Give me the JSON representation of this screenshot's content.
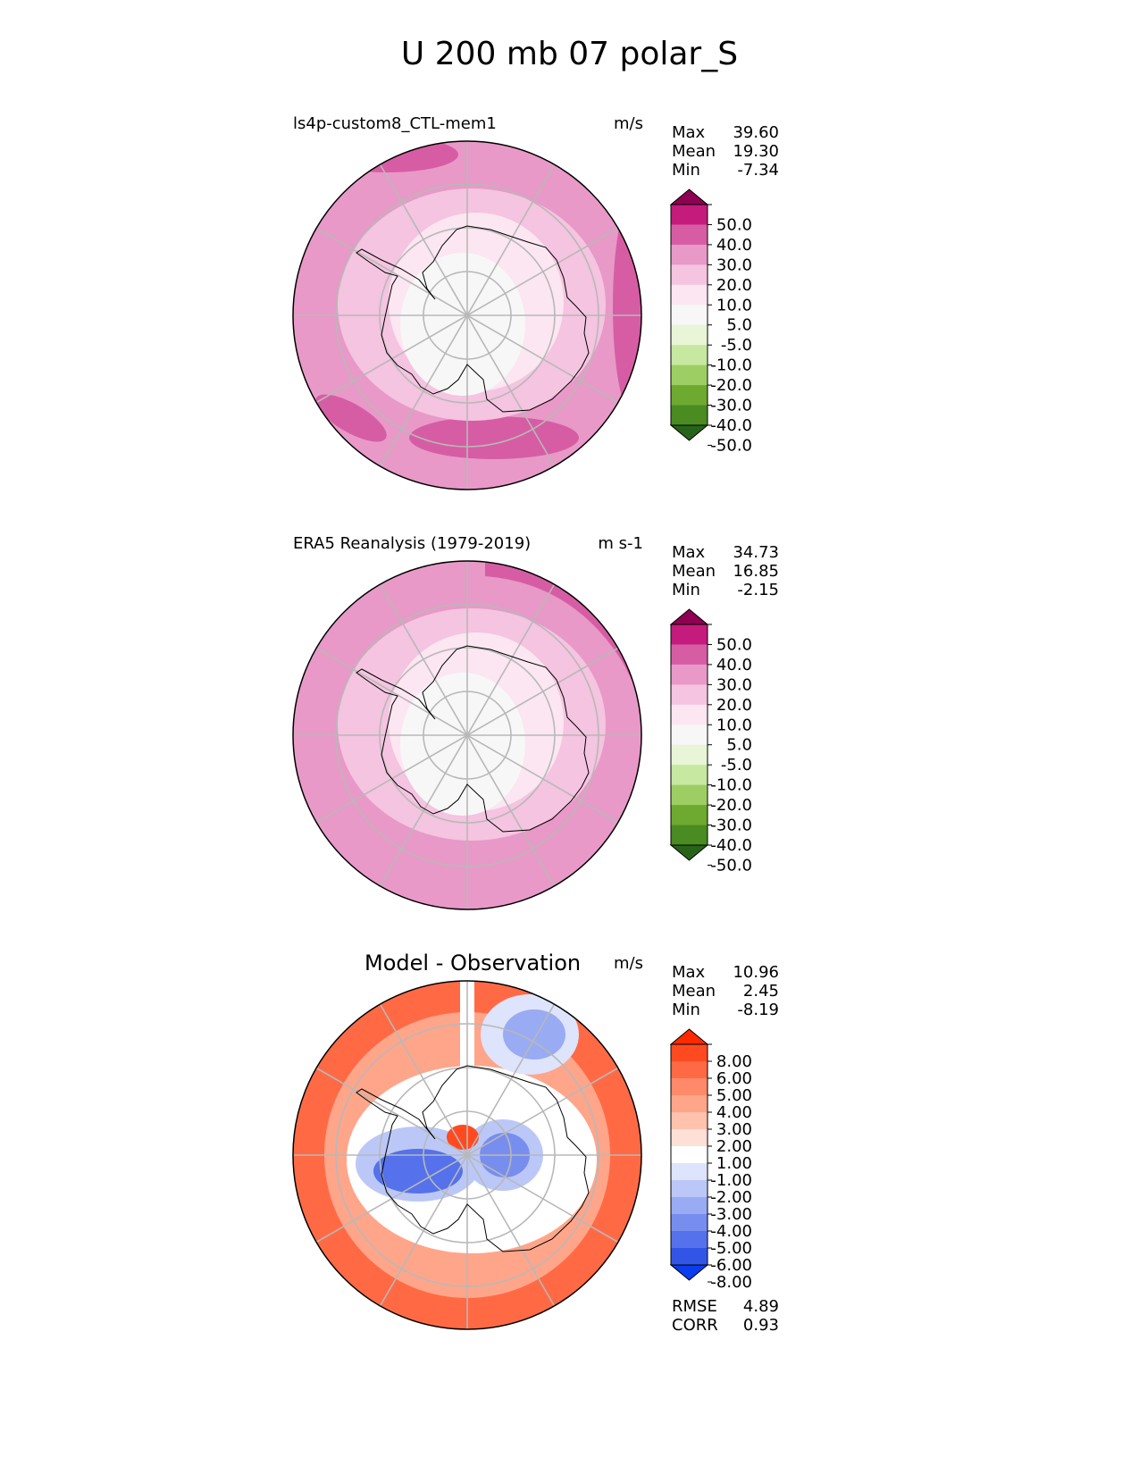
{
  "chart_data": {
    "type": "heatmap",
    "title": "U 200 mb 07 polar_S",
    "projection": "south-polar-stereographic",
    "panels": [
      {
        "id": "model",
        "title": "ls4p-custom8_CTL-mem1",
        "units": "m/s",
        "stats": [
          {
            "label": "Max",
            "value": "39.60"
          },
          {
            "label": "Mean",
            "value": "19.30"
          },
          {
            "label": "Min",
            "value": "-7.34"
          }
        ],
        "colorbar": {
          "levels": [
            "50.0",
            "40.0",
            "30.0",
            "20.0",
            "10.0",
            "5.0",
            "-5.0",
            "-10.0",
            "-20.0",
            "-30.0",
            "-40.0",
            "-50.0"
          ],
          "colors": [
            "#8e0152",
            "#c51b7d",
            "#d65da4",
            "#e899c7",
            "#f4c4e0",
            "#fbe6f1",
            "#f7f7f7",
            "#e8f5d7",
            "#c7e8a0",
            "#9dce63",
            "#6ea930",
            "#4a8b22",
            "#276419"
          ],
          "extend": "both"
        },
        "rings": [
          {
            "band": "outer",
            "value": 25
          },
          {
            "band": "upper",
            "value": 35
          },
          {
            "band": "mid",
            "value": 15
          },
          {
            "band": "inner",
            "value": 7
          },
          {
            "band": "pole",
            "value": 0
          }
        ]
      },
      {
        "id": "obs",
        "title": "ERA5 Reanalysis (1979-2019)",
        "units": "m s-1",
        "stats": [
          {
            "label": "Max",
            "value": "34.73"
          },
          {
            "label": "Mean",
            "value": "16.85"
          },
          {
            "label": "Min",
            "value": "-2.15"
          }
        ],
        "colorbar": {
          "levels": [
            "50.0",
            "40.0",
            "30.0",
            "20.0",
            "10.0",
            "5.0",
            "-5.0",
            "-10.0",
            "-20.0",
            "-30.0",
            "-40.0",
            "-50.0"
          ],
          "colors": [
            "#8e0152",
            "#c51b7d",
            "#d65da4",
            "#e899c7",
            "#f4c4e0",
            "#fbe6f1",
            "#f7f7f7",
            "#e8f5d7",
            "#c7e8a0",
            "#9dce63",
            "#6ea930",
            "#4a8b22",
            "#276419"
          ],
          "extend": "both"
        },
        "rings": [
          {
            "band": "outer",
            "value": 25
          },
          {
            "band": "upper",
            "value": 32
          },
          {
            "band": "mid",
            "value": 15
          },
          {
            "band": "inner",
            "value": 7
          },
          {
            "band": "pole",
            "value": 2
          }
        ]
      },
      {
        "id": "diff",
        "title": "Model - Observation",
        "units": "m/s",
        "stats": [
          {
            "label": "Max",
            "value": "10.96"
          },
          {
            "label": "Mean",
            "value": "2.45"
          },
          {
            "label": "Min",
            "value": "-8.19"
          }
        ],
        "colorbar": {
          "levels": [
            "8.00",
            "6.00",
            "5.00",
            "4.00",
            "3.00",
            "2.00",
            "1.00",
            "-1.00",
            "-2.00",
            "-3.00",
            "-4.00",
            "-5.00",
            "-6.00",
            "-8.00"
          ],
          "colors": [
            "#ff2a00",
            "#ff4a20",
            "#ff6a45",
            "#ff8a6a",
            "#ffa58a",
            "#ffc2ac",
            "#ffe0d6",
            "#ffffff",
            "#dde4fb",
            "#bbc8f7",
            "#99abf3",
            "#778eef",
            "#5571eb",
            "#3355e7",
            "#0a3cf0"
          ],
          "extend": "both"
        },
        "metrics": [
          {
            "label": "RMSE",
            "value": "4.89"
          },
          {
            "label": "CORR",
            "value": "0.93"
          }
        ],
        "regions": [
          {
            "name": "outer-ring",
            "value": 5
          },
          {
            "name": "north-east-negative",
            "value": -4
          },
          {
            "name": "inner-west-negative",
            "value": -6
          },
          {
            "name": "inner-east-negative",
            "value": -5
          },
          {
            "name": "pole-positive",
            "value": 6
          }
        ]
      }
    ]
  }
}
